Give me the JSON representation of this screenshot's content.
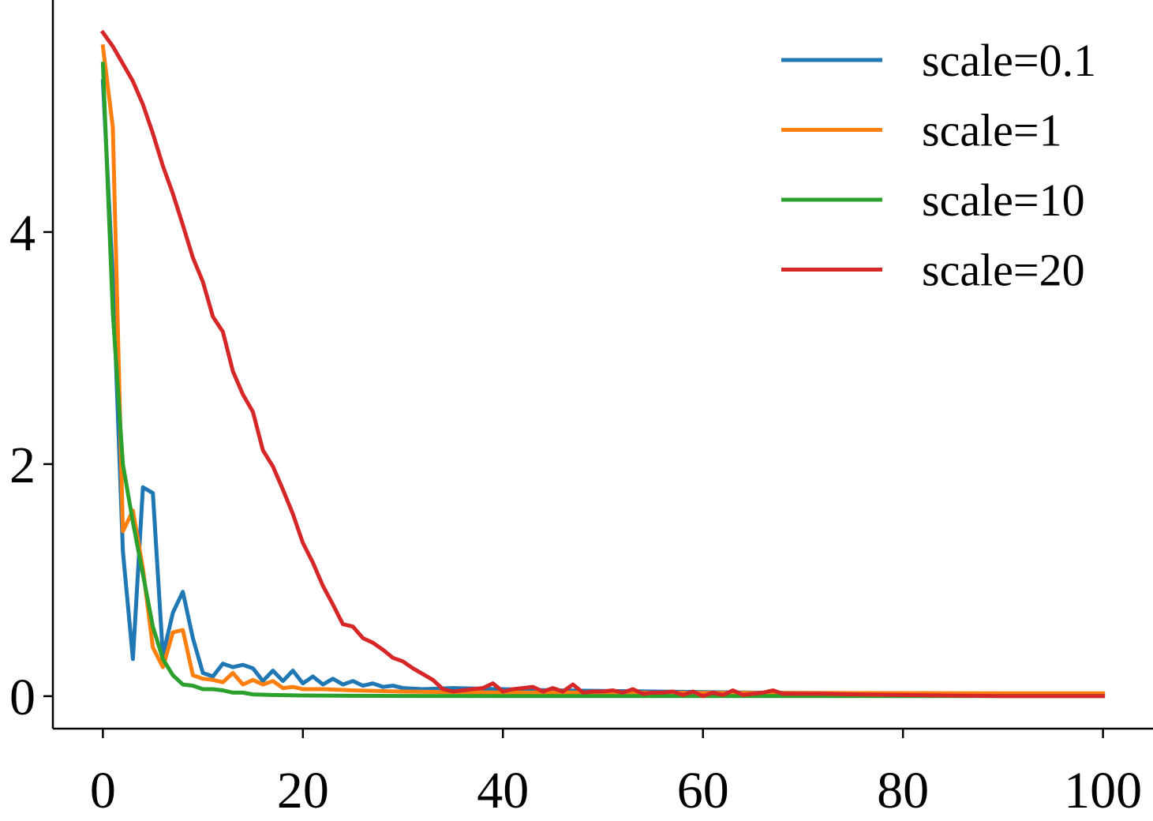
{
  "chart_data": {
    "type": "line",
    "title": "",
    "xlabel": "",
    "ylabel": "",
    "xlim": [
      -5,
      105
    ],
    "ylim": [
      -0.28,
      6.0
    ],
    "x_ticks": [
      0,
      20,
      40,
      60,
      80,
      100
    ],
    "x_tick_labels": [
      "0",
      "20",
      "40",
      "60",
      "80",
      "100"
    ],
    "y_ticks": [
      0,
      2,
      4
    ],
    "y_tick_labels": [
      "0",
      "2",
      "4"
    ],
    "grid": false,
    "legend_position": "upper-right",
    "series": [
      {
        "name": "scale=0.1",
        "color": "#1f77b4",
        "points": [
          [
            0,
            5.3
          ],
          [
            1,
            3.6
          ],
          [
            2,
            1.25
          ],
          [
            3,
            0.32
          ],
          [
            4,
            1.8
          ],
          [
            5,
            1.75
          ],
          [
            6,
            0.35
          ],
          [
            7,
            0.72
          ],
          [
            8,
            0.9
          ],
          [
            9,
            0.5
          ],
          [
            10,
            0.2
          ],
          [
            11,
            0.17
          ],
          [
            12,
            0.28
          ],
          [
            13,
            0.25
          ],
          [
            14,
            0.27
          ],
          [
            15,
            0.24
          ],
          [
            16,
            0.13
          ],
          [
            17,
            0.22
          ],
          [
            18,
            0.13
          ],
          [
            19,
            0.22
          ],
          [
            20,
            0.11
          ],
          [
            21,
            0.17
          ],
          [
            22,
            0.1
          ],
          [
            23,
            0.15
          ],
          [
            24,
            0.1
          ],
          [
            25,
            0.13
          ],
          [
            26,
            0.09
          ],
          [
            27,
            0.11
          ],
          [
            28,
            0.08
          ],
          [
            29,
            0.09
          ],
          [
            30,
            0.07
          ],
          [
            32,
            0.06
          ],
          [
            35,
            0.07
          ],
          [
            40,
            0.06
          ],
          [
            45,
            0.05
          ],
          [
            50,
            0.045
          ],
          [
            55,
            0.04
          ],
          [
            60,
            0.035
          ],
          [
            65,
            0.03
          ],
          [
            70,
            0.028
          ],
          [
            75,
            0.026
          ],
          [
            80,
            0.024
          ],
          [
            85,
            0.022
          ],
          [
            90,
            0.02
          ],
          [
            95,
            0.02
          ],
          [
            100,
            0.02
          ]
        ]
      },
      {
        "name": "scale=1",
        "color": "#ff7f0e",
        "points": [
          [
            0,
            5.6
          ],
          [
            1,
            4.9
          ],
          [
            2,
            1.42
          ],
          [
            3,
            1.6
          ],
          [
            4,
            1.1
          ],
          [
            5,
            0.42
          ],
          [
            6,
            0.25
          ],
          [
            7,
            0.55
          ],
          [
            8,
            0.57
          ],
          [
            9,
            0.18
          ],
          [
            10,
            0.15
          ],
          [
            11,
            0.14
          ],
          [
            12,
            0.12
          ],
          [
            13,
            0.2
          ],
          [
            14,
            0.1
          ],
          [
            15,
            0.14
          ],
          [
            16,
            0.1
          ],
          [
            17,
            0.13
          ],
          [
            18,
            0.07
          ],
          [
            19,
            0.08
          ],
          [
            20,
            0.06
          ],
          [
            22,
            0.06
          ],
          [
            25,
            0.05
          ],
          [
            30,
            0.04
          ],
          [
            35,
            0.035
          ],
          [
            40,
            0.03
          ],
          [
            50,
            0.03
          ],
          [
            60,
            0.028
          ],
          [
            70,
            0.027
          ],
          [
            80,
            0.026
          ],
          [
            90,
            0.025
          ],
          [
            100,
            0.025
          ]
        ]
      },
      {
        "name": "scale=10",
        "color": "#2ca02c",
        "points": [
          [
            0,
            5.45
          ],
          [
            1,
            3.3
          ],
          [
            2,
            2.0
          ],
          [
            3,
            1.5
          ],
          [
            4,
            1.05
          ],
          [
            5,
            0.6
          ],
          [
            6,
            0.32
          ],
          [
            7,
            0.18
          ],
          [
            8,
            0.1
          ],
          [
            9,
            0.09
          ],
          [
            10,
            0.06
          ],
          [
            11,
            0.06
          ],
          [
            12,
            0.05
          ],
          [
            13,
            0.03
          ],
          [
            14,
            0.03
          ],
          [
            15,
            0.015
          ],
          [
            17,
            0.01
          ],
          [
            20,
            0.006
          ],
          [
            25,
            0.003
          ],
          [
            30,
            0.002
          ],
          [
            40,
            0.0
          ],
          [
            60,
            0.0
          ],
          [
            80,
            0.0
          ],
          [
            100,
            0.0
          ]
        ]
      },
      {
        "name": "scale=20",
        "color": "#d62728",
        "points": [
          [
            0,
            5.72
          ],
          [
            1,
            5.6
          ],
          [
            2,
            5.45
          ],
          [
            3,
            5.3
          ],
          [
            4,
            5.1
          ],
          [
            5,
            4.85
          ],
          [
            6,
            4.57
          ],
          [
            7,
            4.33
          ],
          [
            8,
            4.06
          ],
          [
            9,
            3.78
          ],
          [
            10,
            3.57
          ],
          [
            11,
            3.27
          ],
          [
            12,
            3.14
          ],
          [
            13,
            2.8
          ],
          [
            14,
            2.6
          ],
          [
            15,
            2.45
          ],
          [
            16,
            2.12
          ],
          [
            17,
            1.98
          ],
          [
            18,
            1.78
          ],
          [
            19,
            1.57
          ],
          [
            20,
            1.32
          ],
          [
            21,
            1.15
          ],
          [
            22,
            0.95
          ],
          [
            23,
            0.79
          ],
          [
            24,
            0.62
          ],
          [
            25,
            0.6
          ],
          [
            26,
            0.5
          ],
          [
            27,
            0.46
          ],
          [
            28,
            0.4
          ],
          [
            29,
            0.33
          ],
          [
            30,
            0.3
          ],
          [
            31,
            0.24
          ],
          [
            32,
            0.19
          ],
          [
            33,
            0.14
          ],
          [
            34,
            0.06
          ],
          [
            35,
            0.04
          ],
          [
            36,
            0.05
          ],
          [
            37,
            0.06
          ],
          [
            38,
            0.07
          ],
          [
            39,
            0.11
          ],
          [
            40,
            0.04
          ],
          [
            41,
            0.06
          ],
          [
            42,
            0.07
          ],
          [
            43,
            0.08
          ],
          [
            44,
            0.04
          ],
          [
            45,
            0.07
          ],
          [
            46,
            0.04
          ],
          [
            47,
            0.1
          ],
          [
            48,
            0.03
          ],
          [
            49,
            0.04
          ],
          [
            50,
            0.04
          ],
          [
            51,
            0.05
          ],
          [
            52,
            0.03
          ],
          [
            53,
            0.06
          ],
          [
            54,
            0.02
          ],
          [
            55,
            0.03
          ],
          [
            56,
            0.03
          ],
          [
            57,
            0.04
          ],
          [
            58,
            0.01
          ],
          [
            59,
            0.04
          ],
          [
            60,
            0.0
          ],
          [
            61,
            0.03
          ],
          [
            62,
            0.01
          ],
          [
            63,
            0.05
          ],
          [
            64,
            0.01
          ],
          [
            65,
            0.02
          ],
          [
            66,
            0.03
          ],
          [
            67,
            0.05
          ],
          [
            68,
            0.02
          ],
          [
            70,
            0.02
          ],
          [
            72,
            0.02
          ],
          [
            75,
            0.015
          ],
          [
            80,
            0.01
          ],
          [
            85,
            0.005
          ],
          [
            90,
            0.0
          ],
          [
            95,
            0.0
          ],
          [
            100,
            0.0
          ]
        ]
      }
    ]
  }
}
